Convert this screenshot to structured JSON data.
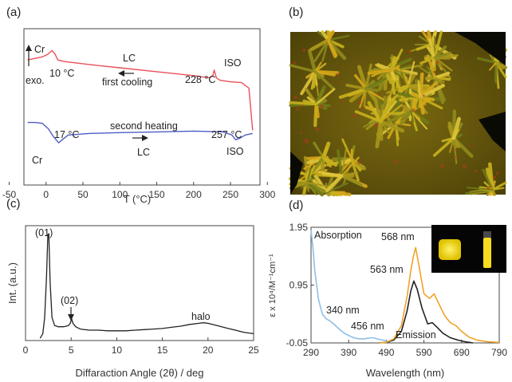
{
  "panels": {
    "a": "(a)",
    "b": "(b)",
    "c": "(c)",
    "d": "(d)"
  },
  "chart_data": [
    {
      "panel": "a",
      "type": "line",
      "xlabel": "T (°C)",
      "xlim": [
        -30,
        290
      ],
      "xticks": [
        -50,
        0,
        50,
        100,
        150,
        200,
        250,
        300
      ],
      "ylim": [
        0,
        1
      ],
      "series": [
        {
          "name": "first cooling",
          "color": "#e8505a",
          "x": [
            -25,
            -15,
            -5,
            2,
            8,
            12,
            16,
            25,
            60,
            100,
            150,
            200,
            222,
            226,
            228,
            231,
            236,
            250,
            265,
            275,
            280
          ],
          "y": [
            0.8,
            0.81,
            0.82,
            0.835,
            0.86,
            0.84,
            0.8,
            0.79,
            0.77,
            0.75,
            0.725,
            0.7,
            0.685,
            0.7,
            0.735,
            0.685,
            0.67,
            0.66,
            0.655,
            0.62,
            0.35
          ]
        },
        {
          "name": "second heating",
          "color": "#4f5cc4",
          "x": [
            -25,
            -15,
            -5,
            3,
            10,
            17,
            22,
            30,
            60,
            100,
            150,
            200,
            240,
            252,
            257,
            263,
            270,
            280
          ],
          "y": [
            0.4,
            0.4,
            0.395,
            0.36,
            0.31,
            0.27,
            0.29,
            0.32,
            0.33,
            0.335,
            0.34,
            0.345,
            0.34,
            0.32,
            0.29,
            0.3,
            0.32,
            0.33
          ]
        }
      ],
      "annotations": {
        "cr_top": "Cr",
        "exo": "exo.",
        "t_10": "10 °C",
        "lc_top": "LC",
        "first_cooling": "first cooling",
        "t_228": "228 °C",
        "iso_top": "ISO",
        "second_heating": "second heating",
        "t_17": "17 °C",
        "t_257": "257 °C",
        "cr_bottom": "Cr",
        "lc_bottom": "LC",
        "iso_bottom": "ISO"
      }
    },
    {
      "panel": "c",
      "type": "line",
      "xlabel": "Diffaraction Angle (2θ) / deg",
      "ylabel": "Int. (a.u.)",
      "xlim": [
        0,
        25
      ],
      "xticks": [
        0,
        5,
        10,
        15,
        20,
        25
      ],
      "ylim": [
        0,
        1
      ],
      "series": [
        {
          "name": "XRD",
          "color": "#222222",
          "x": [
            1.6,
            1.9,
            2.1,
            2.3,
            2.45,
            2.55,
            2.7,
            2.9,
            3.2,
            3.6,
            4.2,
            4.7,
            4.9,
            5.05,
            5.2,
            5.5,
            6,
            7,
            8,
            9,
            10,
            11,
            12,
            13,
            14,
            15,
            16,
            17,
            18,
            19,
            19.5,
            20,
            21,
            22,
            23,
            24,
            25
          ],
          "y": [
            0.02,
            0.06,
            0.2,
            0.55,
            0.92,
            0.93,
            0.5,
            0.2,
            0.13,
            0.12,
            0.12,
            0.13,
            0.15,
            0.19,
            0.15,
            0.12,
            0.1,
            0.09,
            0.09,
            0.085,
            0.085,
            0.085,
            0.09,
            0.095,
            0.1,
            0.105,
            0.115,
            0.125,
            0.14,
            0.15,
            0.155,
            0.15,
            0.13,
            0.11,
            0.09,
            0.07,
            0.06
          ]
        }
      ],
      "annotations": {
        "p01": "(01)",
        "p02": "(02)",
        "halo": "halo"
      }
    },
    {
      "panel": "d",
      "type": "line",
      "xlabel": "Wavelength (nm)",
      "ylabel": "ε x 10⁴/M⁻¹cm⁻¹",
      "xlim": [
        290,
        790
      ],
      "xticks": [
        290,
        390,
        490,
        590,
        690,
        790
      ],
      "ylim": [
        -0.05,
        1.95
      ],
      "yticks": [
        -0.05,
        0.95,
        1.95
      ],
      "series": [
        {
          "name": "Absorption",
          "color": "#8fbfe6",
          "x": [
            290,
            295,
            300,
            310,
            320,
            330,
            340,
            350,
            360,
            370,
            380,
            390,
            400,
            410,
            420,
            430,
            440,
            450,
            456,
            465,
            480,
            500
          ],
          "y": [
            1.9,
            1.6,
            1.2,
            0.7,
            0.45,
            0.37,
            0.33,
            0.28,
            0.22,
            0.16,
            0.11,
            0.08,
            0.05,
            0.03,
            0.02,
            0.02,
            0.03,
            0.04,
            0.04,
            0.02,
            0.0,
            -0.03
          ]
        },
        {
          "name": "Emission 563 nm",
          "color": "#222222",
          "x": [
            470,
            490,
            510,
            530,
            545,
            555,
            563,
            572,
            585,
            600,
            612,
            625,
            640,
            660,
            680,
            700,
            720
          ],
          "y": [
            -0.05,
            -0.04,
            0.0,
            0.15,
            0.5,
            0.85,
            1.02,
            0.88,
            0.55,
            0.28,
            0.3,
            0.22,
            0.12,
            0.04,
            0.0,
            -0.03,
            -0.05
          ]
        },
        {
          "name": "Emission 568 nm",
          "color": "#f0a32a",
          "x": [
            470,
            490,
            510,
            530,
            545,
            555,
            562,
            568,
            575,
            590,
            605,
            617,
            630,
            645,
            660,
            675,
            690,
            710,
            730,
            760,
            790
          ],
          "y": [
            -0.05,
            -0.04,
            0.02,
            0.25,
            0.75,
            1.2,
            1.45,
            1.6,
            1.35,
            0.8,
            0.72,
            0.8,
            0.62,
            0.42,
            0.3,
            0.25,
            0.15,
            0.05,
            0.0,
            -0.03,
            -0.04
          ]
        }
      ],
      "annotations": {
        "absorption": "Absorption",
        "nm568": "568 nm",
        "nm563": "563 nm",
        "nm340": "340 nm",
        "nm456": "456 nm",
        "emission": "Emission"
      }
    }
  ]
}
